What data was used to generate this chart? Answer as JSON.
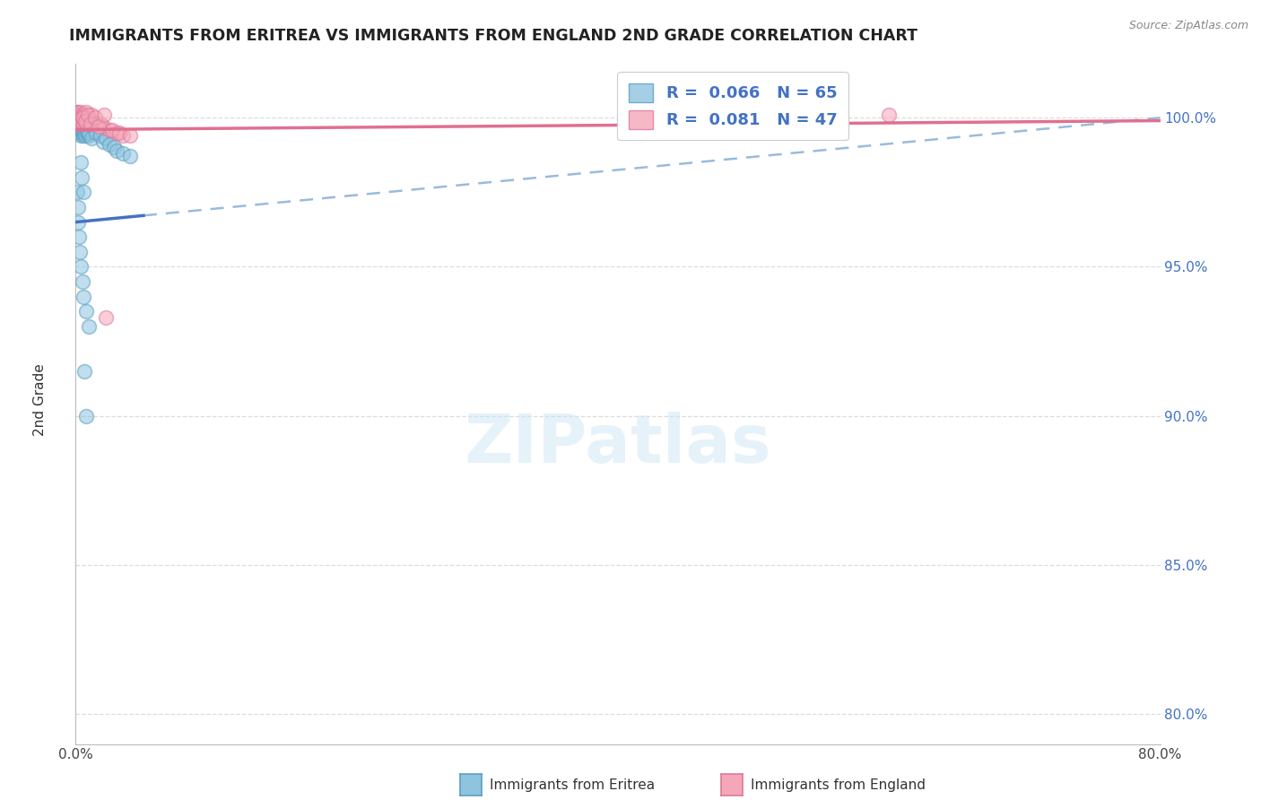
{
  "title": "IMMIGRANTS FROM ERITREA VS IMMIGRANTS FROM ENGLAND 2ND GRADE CORRELATION CHART",
  "source": "Source: ZipAtlas.com",
  "ylabel_left": "2nd Grade",
  "R_eritrea": 0.066,
  "N_eritrea": 65,
  "R_england": 0.081,
  "N_england": 47,
  "eritrea_color": "#8fc4e0",
  "eritrea_edge_color": "#5a9fc0",
  "england_color": "#f4a7b9",
  "england_edge_color": "#e07898",
  "trend_eritrea_color": "#4472c4",
  "trend_england_color": "#e07090",
  "trend_eritrea_dashed_color": "#99bbdd",
  "legend_label_eritrea": "Immigrants from Eritrea",
  "legend_label_england": "Immigrants from England",
  "x_min": 0.0,
  "x_max": 80.0,
  "y_min": 79.0,
  "y_max": 101.8,
  "yticks": [
    80.0,
    85.0,
    90.0,
    95.0,
    100.0
  ],
  "text_color_blue": "#4472c4",
  "grid_color": "#dddddd"
}
